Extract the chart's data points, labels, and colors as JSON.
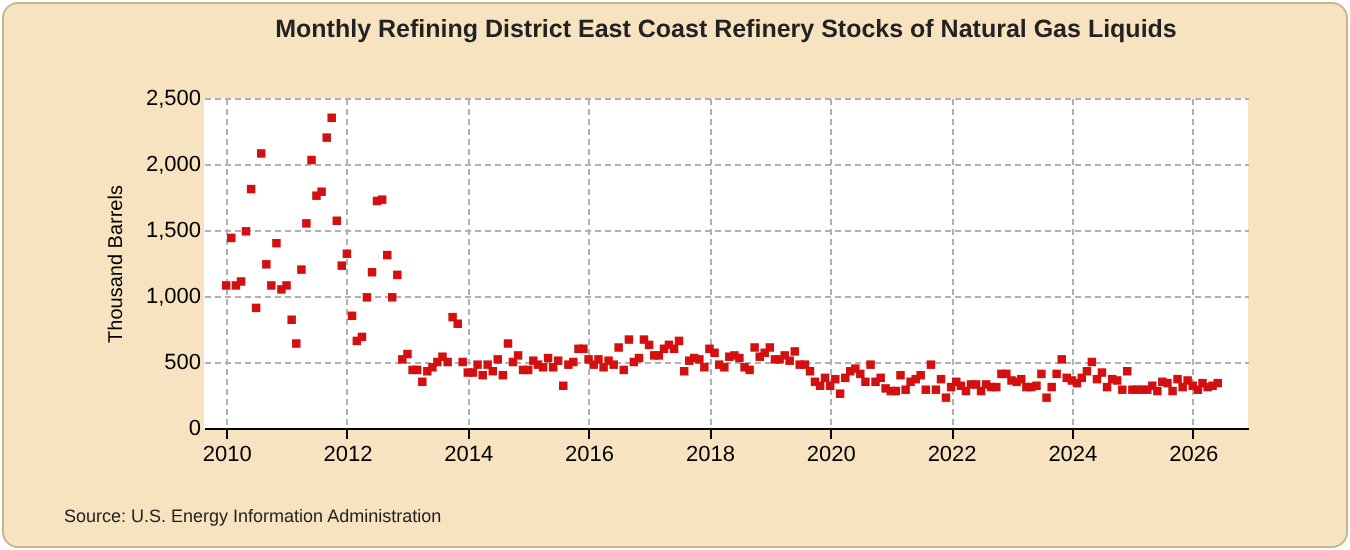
{
  "chart_data": {
    "type": "scatter",
    "title": "Monthly Refining District East Coast Refinery Stocks of Natural Gas Liquids",
    "ylabel": "Thousand Barrels",
    "annotations": [
      "Source: U.S. Energy Information Administration"
    ],
    "xlim": [
      "2009-08-20",
      "2026-12-01"
    ],
    "xticks": [
      "2010",
      "2012",
      "2014",
      "2016",
      "2018",
      "2020",
      "2022",
      "2024",
      "2026"
    ],
    "ylim": [
      0,
      2500
    ],
    "yticks": [
      0,
      500,
      {
        "value": 1000,
        "label": "1,000"
      },
      {
        "value": 1500,
        "label": "1,500"
      },
      {
        "value": 2000,
        "label": "2,000"
      },
      {
        "value": 2500,
        "label": "2,500"
      }
    ],
    "grid": true,
    "marker": "square",
    "series": [
      {
        "color": "#d40f0f",
        "x": [
          "2010-01",
          "2010-02",
          "2010-03",
          "2010-04",
          "2010-05",
          "2010-06",
          "2010-07",
          "2010-08",
          "2010-09",
          "2010-10",
          "2010-11",
          "2010-12",
          "2011-01",
          "2011-02",
          "2011-03",
          "2011-04",
          "2011-05",
          "2011-06",
          "2011-07",
          "2011-08",
          "2011-09",
          "2011-10",
          "2011-11",
          "2011-12",
          "2012-01",
          "2012-02",
          "2012-03",
          "2012-04",
          "2012-05",
          "2012-06",
          "2012-07",
          "2012-08",
          "2012-09",
          "2012-10",
          "2012-11",
          "2012-12",
          "2013-01",
          "2013-02",
          "2013-03",
          "2013-04",
          "2013-05",
          "2013-06",
          "2013-07",
          "2013-08",
          "2013-09",
          "2013-10",
          "2013-11",
          "2013-12",
          "2014-01",
          "2014-02",
          "2014-03",
          "2014-04",
          "2014-05",
          "2014-06",
          "2014-07",
          "2014-08",
          "2014-09",
          "2014-10",
          "2014-11",
          "2014-12",
          "2015-01",
          "2015-02",
          "2015-03",
          "2015-04",
          "2015-05",
          "2015-06",
          "2015-07",
          "2015-08",
          "2015-09",
          "2015-10",
          "2015-11",
          "2015-12",
          "2016-01",
          "2016-02",
          "2016-03",
          "2016-04",
          "2016-05",
          "2016-06",
          "2016-07",
          "2016-08",
          "2016-09",
          "2016-10",
          "2016-11",
          "2016-12",
          "2017-01",
          "2017-02",
          "2017-03",
          "2017-04",
          "2017-05",
          "2017-06",
          "2017-07",
          "2017-08",
          "2017-09",
          "2017-10",
          "2017-11",
          "2017-12",
          "2018-01",
          "2018-02",
          "2018-03",
          "2018-04",
          "2018-05",
          "2018-06",
          "2018-07",
          "2018-08",
          "2018-09",
          "2018-10",
          "2018-11",
          "2018-12",
          "2019-01",
          "2019-02",
          "2019-03",
          "2019-04",
          "2019-05",
          "2019-06",
          "2019-07",
          "2019-08",
          "2019-09",
          "2019-10",
          "2019-11",
          "2019-12",
          "2020-01",
          "2020-02",
          "2020-03",
          "2020-04",
          "2020-05",
          "2020-06",
          "2020-07",
          "2020-08",
          "2020-09",
          "2020-10",
          "2020-11",
          "2020-12",
          "2021-01",
          "2021-02",
          "2021-03",
          "2021-04",
          "2021-05",
          "2021-06",
          "2021-07",
          "2021-08",
          "2021-09",
          "2021-10",
          "2021-11",
          "2021-12",
          "2022-01",
          "2022-02",
          "2022-03",
          "2022-04",
          "2022-05",
          "2022-06",
          "2022-07",
          "2022-08",
          "2022-09",
          "2022-10",
          "2022-11",
          "2022-12",
          "2023-01",
          "2023-02",
          "2023-03",
          "2023-04",
          "2023-05",
          "2023-06",
          "2023-07",
          "2023-08",
          "2023-09",
          "2023-10",
          "2023-11",
          "2023-12",
          "2024-01",
          "2024-02",
          "2024-03",
          "2024-04",
          "2024-05",
          "2024-06",
          "2024-07",
          "2024-08",
          "2024-09",
          "2024-10",
          "2024-11",
          "2024-12",
          "2025-01",
          "2025-02",
          "2025-03",
          "2025-04",
          "2025-05",
          "2025-06",
          "2025-07",
          "2025-08",
          "2025-09",
          "2025-10",
          "2025-11",
          "2025-12",
          "2026-01",
          "2026-02",
          "2026-03",
          "2026-04",
          "2026-05",
          "2026-06"
        ],
        "values": [
          1080,
          1440,
          1080,
          1110,
          1490,
          1810,
          910,
          2080,
          1240,
          1080,
          1400,
          1050,
          1080,
          820,
          640,
          1200,
          1550,
          2030,
          1760,
          1790,
          2200,
          2350,
          1570,
          1230,
          1320,
          850,
          660,
          690,
          990,
          1180,
          1720,
          1730,
          1310,
          990,
          1160,
          520,
          560,
          440,
          440,
          350,
          430,
          460,
          500,
          540,
          500,
          840,
          790,
          500,
          420,
          420,
          480,
          400,
          480,
          430,
          520,
          400,
          640,
          500,
          550,
          440,
          440,
          510,
          480,
          460,
          530,
          460,
          510,
          320,
          480,
          500,
          600,
          600,
          520,
          480,
          520,
          460,
          510,
          480,
          610,
          440,
          670,
          500,
          530,
          670,
          630,
          550,
          550,
          600,
          630,
          600,
          660,
          430,
          510,
          530,
          520,
          460,
          600,
          570,
          480,
          460,
          540,
          550,
          530,
          460,
          440,
          610,
          540,
          570,
          610,
          520,
          520,
          550,
          510,
          580,
          480,
          480,
          430,
          350,
          320,
          380,
          320,
          370,
          260,
          380,
          430,
          450,
          410,
          350,
          480,
          350,
          380,
          300,
          280,
          280,
          400,
          290,
          350,
          370,
          400,
          290,
          480,
          290,
          370,
          230,
          310,
          350,
          320,
          280,
          330,
          330,
          280,
          330,
          310,
          310,
          410,
          410,
          360,
          350,
          370,
          310,
          310,
          320,
          410,
          230,
          310,
          410,
          520,
          380,
          360,
          340,
          380,
          430,
          500,
          370,
          420,
          310,
          370,
          360,
          290,
          430,
          290,
          290,
          290,
          290,
          320,
          280,
          350,
          340,
          280,
          370,
          310,
          360,
          320,
          290,
          340,
          310,
          320,
          340
        ]
      }
    ]
  }
}
